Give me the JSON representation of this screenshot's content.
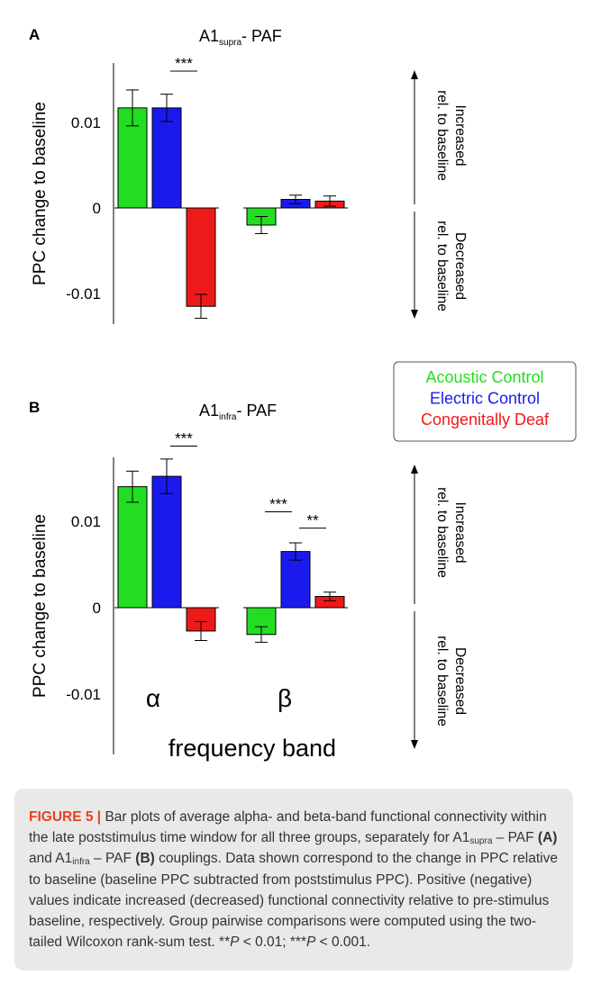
{
  "chart_data": [
    {
      "type": "bar",
      "panel_label": "A",
      "title_base": "A1",
      "title_sub": "supra",
      "title_rest": "- PAF",
      "ylabel": "PPC change to baseline",
      "ylim": [
        -0.0138,
        0.0172
      ],
      "yticks": [
        0.01,
        0,
        -0.01
      ],
      "ytick_labels": [
        "0.01",
        "0",
        "-0.01"
      ],
      "categories": [
        "α",
        "β"
      ],
      "show_category_labels": false,
      "series": [
        {
          "name": "Acoustic Control",
          "values": [
            0.0117,
            -0.002
          ],
          "errors": [
            0.0021,
            0.001
          ]
        },
        {
          "name": "Electric Control",
          "values": [
            0.0117,
            0.001
          ],
          "errors": [
            0.0016,
            0.0005
          ]
        },
        {
          "name": "Congenitally Deaf",
          "values": [
            -0.0115,
            0.0008
          ],
          "errors": [
            0.0014,
            0.0006
          ]
        }
      ],
      "significance": [
        {
          "label": "***",
          "category": 0,
          "from": 1,
          "to": 2,
          "y": 0.016
        }
      ],
      "side_annotations": {
        "increased": [
          "Increased",
          "rel. to baseline"
        ],
        "decreased": [
          "Decreased",
          "rel. to baseline"
        ]
      }
    },
    {
      "type": "bar",
      "panel_label": "B",
      "title_base": "A1",
      "title_sub": "infra",
      "title_rest": "- PAF",
      "ylabel": "PPC change to baseline",
      "ylim": [
        -0.0172,
        0.0174
      ],
      "yticks": [
        0.01,
        0,
        -0.01
      ],
      "ytick_labels": [
        "0.01",
        "0",
        "-0.01"
      ],
      "categories": [
        "α",
        "β"
      ],
      "show_category_labels": true,
      "xlabel": "frequency band",
      "series": [
        {
          "name": "Acoustic Control",
          "values": [
            0.014,
            -0.0031
          ],
          "errors": [
            0.0018,
            0.0009
          ]
        },
        {
          "name": "Electric Control",
          "values": [
            0.0152,
            0.0065
          ],
          "errors": [
            0.002,
            0.001
          ]
        },
        {
          "name": "Congenitally Deaf",
          "values": [
            -0.0027,
            0.0013
          ],
          "errors": [
            0.0011,
            0.0005
          ]
        }
      ],
      "significance": [
        {
          "label": "***",
          "category": 0,
          "from": 1,
          "to": 2,
          "y": 0.0187
        },
        {
          "label": "***",
          "category": 1,
          "from": 0,
          "to": 1,
          "y": 0.0111
        },
        {
          "label": "**",
          "category": 1,
          "from": 1,
          "to": 2,
          "y": 0.0092
        }
      ],
      "side_annotations": {
        "increased": [
          "Increased",
          "rel. to baseline"
        ],
        "decreased": [
          "Decreased",
          "rel. to baseline"
        ]
      }
    }
  ],
  "legend": {
    "placement": "right, between panels",
    "entries": [
      {
        "label": "Acoustic Control",
        "color": "#22dd22"
      },
      {
        "label": "Electric Control",
        "color": "#1a1aee"
      },
      {
        "label": "Congenitally Deaf",
        "color": "#ee1a1a"
      }
    ]
  },
  "colors": {
    "acoustic": "#22dd22",
    "electric": "#1a1aee",
    "deaf": "#ee1a1a",
    "caption_bg": "#e9e9e9",
    "caption_accent": "#e8431c"
  },
  "caption": {
    "figure_label": "FIGURE 5 |",
    "s1": " Bar plots of average alpha- and beta-band functional connectivity within the late poststimulus time window for all three groups, separately for A1",
    "sub1": "supra",
    "s2": " – PAF ",
    "ref_a": "(A)",
    "s3": " and A1",
    "sub2": "infra",
    "s4": " – PAF ",
    "ref_b": "(B)",
    "s5": " couplings. Data shown correspond to the change in PPC relative to baseline (baseline PPC subtracted from poststimulus PPC). Positive (negative) values indicate increased (decreased) functional connectivity relative to pre-stimulus baseline, respectively. Group pairwise comparisons were computed using the two-tailed Wilcoxon rank-sum test. **",
    "p1": "P",
    "s6": " < 0.01; ***",
    "p2": "P",
    "s7": " < 0.001."
  }
}
